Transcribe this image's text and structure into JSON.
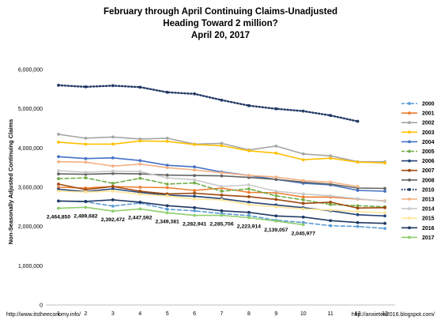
{
  "chart_data": {
    "type": "line",
    "title_lines": [
      "February through April Continuing Claims-Unadjusted",
      "Heading Toward 2 million?",
      "April 20, 2017"
    ],
    "ylabel": "Non-Seasonally Adjusted Continuing Claims",
    "xlabel": "",
    "x": [
      1,
      2,
      3,
      4,
      5,
      6,
      7,
      8,
      9,
      10,
      11,
      12,
      13
    ],
    "x_tick_labels": [
      "1",
      "2",
      "3",
      "4",
      "5",
      "6",
      "7",
      "8",
      "9",
      "10",
      "11",
      "12",
      "13"
    ],
    "ylim": [
      0,
      6000000
    ],
    "y_ticks": [
      0,
      1000000,
      2000000,
      3000000,
      4000000,
      5000000,
      6000000
    ],
    "y_tick_labels": [
      "0",
      "1,000,000",
      "2,000,000",
      "3,000,000",
      "4,000,000",
      "5,000,000",
      "6,000,000"
    ],
    "grid": false,
    "legend_position": "right",
    "series": [
      {
        "name": "2000",
        "color": "#5b9bd5",
        "dash": "dashed",
        "marker": "circle",
        "values": [
          2650000,
          2630000,
          2520000,
          2600000,
          2440000,
          2400000,
          2330000,
          2280000,
          2160000,
          2100000,
          2020000,
          2000000,
          1950000
        ]
      },
      {
        "name": "2001",
        "color": "#ed7d31",
        "dash": "solid",
        "marker": "circle",
        "values": [
          3000000,
          2980000,
          3020000,
          3000000,
          2990000,
          2920000,
          2980000,
          2870000,
          2860000,
          2750000,
          2750000,
          2700000,
          2650000
        ]
      },
      {
        "name": "2002",
        "color": "#a5a5a5",
        "dash": "solid",
        "marker": "circle",
        "values": [
          4350000,
          4250000,
          4280000,
          4230000,
          4250000,
          4100000,
          4120000,
          3950000,
          4050000,
          3850000,
          3800000,
          3650000,
          3650000
        ]
      },
      {
        "name": "2003",
        "color": "#ffc000",
        "dash": "solid",
        "marker": "circle",
        "values": [
          4150000,
          4100000,
          4100000,
          4180000,
          4170000,
          4090000,
          4060000,
          3930000,
          3870000,
          3700000,
          3740000,
          3640000,
          3620000
        ]
      },
      {
        "name": "2004",
        "color": "#4472c4",
        "dash": "solid",
        "marker": "circle",
        "values": [
          3780000,
          3730000,
          3750000,
          3680000,
          3560000,
          3520000,
          3390000,
          3300000,
          3200000,
          3100000,
          3060000,
          2920000,
          2900000
        ]
      },
      {
        "name": "2005",
        "color": "#70ad47",
        "dash": "dashed",
        "marker": "circle",
        "values": [
          3220000,
          3240000,
          3100000,
          3230000,
          3080000,
          3110000,
          2900000,
          2960000,
          2780000,
          2680000,
          2560000,
          2530000,
          2500000
        ]
      },
      {
        "name": "2006",
        "color": "#264478",
        "dash": "solid",
        "marker": "circle",
        "values": [
          2950000,
          2890000,
          2960000,
          2870000,
          2800000,
          2770000,
          2710000,
          2620000,
          2550000,
          2480000,
          2400000,
          2300000,
          2270000
        ]
      },
      {
        "name": "2007",
        "color": "#9e480e",
        "dash": "solid",
        "marker": "circle",
        "values": [
          3080000,
          2940000,
          3020000,
          2900000,
          2830000,
          2850000,
          2800000,
          2760000,
          2690000,
          2590000,
          2620000,
          2470000,
          2480000
        ]
      },
      {
        "name": "2008",
        "color": "#636363",
        "dash": "solid",
        "marker": "circle",
        "values": [
          3340000,
          3330000,
          3350000,
          3340000,
          3310000,
          3300000,
          3290000,
          3250000,
          3200000,
          3130000,
          3080000,
          2980000,
          2970000
        ]
      },
      {
        "name": "2010",
        "color": "#203864",
        "dash": "dotted",
        "marker": "circle",
        "values": [
          5600000,
          5560000,
          5590000,
          5550000,
          5420000,
          5380000,
          5220000,
          5080000,
          5000000,
          4940000,
          4830000,
          4680000,
          null
        ]
      },
      {
        "name": "2013",
        "color": "#f4b183",
        "dash": "solid",
        "marker": "circle",
        "values": [
          3650000,
          3640000,
          3540000,
          3590000,
          3500000,
          3440000,
          3370000,
          3300000,
          3260000,
          3170000,
          3130000,
          3020000,
          null
        ]
      },
      {
        "name": "2014",
        "color": "#c9c9c9",
        "dash": "solid",
        "marker": "circle",
        "values": [
          3420000,
          3380000,
          3410000,
          3400000,
          3240000,
          3190000,
          3020000,
          3060000,
          2900000,
          2830000,
          2780000,
          2710000,
          2640000
        ]
      },
      {
        "name": "2015",
        "color": "#ffe699",
        "dash": "solid",
        "marker": "circle",
        "values": [
          2900000,
          2880000,
          2900000,
          2820000,
          2780000,
          2700000,
          2680000,
          2560000,
          2500000,
          2450000,
          2420000,
          2380000,
          2350000
        ]
      },
      {
        "name": "2016",
        "color": "#1f3864",
        "dash": "solid",
        "marker": "circle",
        "values": [
          2650000,
          2640000,
          2680000,
          2620000,
          2530000,
          2480000,
          2400000,
          2360000,
          2270000,
          2240000,
          2150000,
          2100000,
          2080000
        ]
      },
      {
        "name": "2017",
        "color": "#8fce6c",
        "dash": "solid",
        "marker": "circle",
        "values": [
          2464850,
          2489682,
          2392472,
          2447592,
          2349381,
          2282941,
          2285706,
          2223914,
          2139057,
          2045977,
          null,
          null,
          null
        ]
      }
    ],
    "data_labels": {
      "series": "2017",
      "labels": [
        "2,464,850",
        "2,489,682",
        "2,392,472",
        "2,447,592",
        "2,349,381",
        "2,282,941",
        "2,285,706",
        "2,223,914",
        "2,139,057",
        "2,045,977"
      ]
    }
  },
  "footer": {
    "left": "http://www.itstheeconomy.info/",
    "right": "http://anxietea2016.blogspot.com/"
  }
}
